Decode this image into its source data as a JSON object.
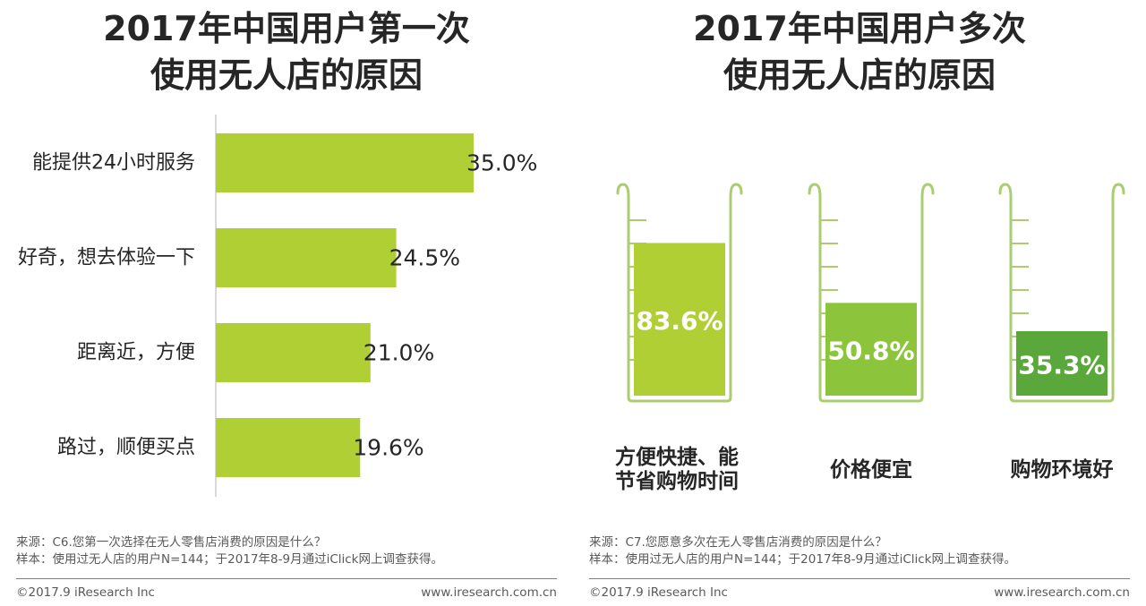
{
  "chart_data": [
    {
      "type": "bar",
      "orientation": "horizontal",
      "title": "2017年中国用户第一次使用无人店的原因",
      "title_lines": [
        "2017年中国用户第一次",
        "使用无人店的原因"
      ],
      "categories": [
        "能提供24小时服务",
        "好奇，想去体验一下",
        "距离近，方便",
        "路过，顺便买点"
      ],
      "values": [
        35.0,
        24.5,
        21.0,
        19.6
      ],
      "value_labels": [
        "35.0%",
        "24.5%",
        "21.0%",
        "19.6%"
      ],
      "unit": "%",
      "xlim": [
        0,
        35.0
      ],
      "grid": false,
      "bar_color": "#b0cf34"
    },
    {
      "type": "bar",
      "style": "beaker-fill",
      "title": "2017年中国用户多次使用无人店的原因",
      "title_lines": [
        "2017年中国用户多次",
        "使用无人店的原因"
      ],
      "categories": [
        "方便快捷、能节省购物时间",
        "价格便宜",
        "购物环境好"
      ],
      "category_lines": [
        [
          "方便快捷、能",
          "节省购物时间"
        ],
        [
          "价格便宜"
        ],
        [
          "购物环境好"
        ]
      ],
      "values": [
        83.6,
        50.8,
        35.3
      ],
      "value_labels": [
        "83.6%",
        "50.8%",
        "35.3%"
      ],
      "unit": "%",
      "ylim": [
        0,
        100
      ],
      "grid": false,
      "bar_colors": [
        "#b0cf34",
        "#8cc43c",
        "#5aa83c"
      ],
      "beaker_color": "#a9cd6f"
    }
  ],
  "left_footer": {
    "source": "来源：C6.您第一次选择在无人零售店消费的原因是什么？",
    "sample": "样本：使用过无人店的用户N=144；于2017年8-9月通过iClick网上调查获得。",
    "copyright": "©2017.9 iResearch Inc",
    "website": "www.iresearch.com.cn"
  },
  "right_footer": {
    "source": "来源：C7.您愿意多次在无人零售店消费的原因是什么？",
    "sample": "样本：使用过无人店的用户N=144；于2017年8-9月通过iClick网上调查获得。",
    "copyright": "©2017.9 iResearch Inc",
    "website": "www.iresearch.com.cn"
  },
  "colors": {
    "text_dark": "#262626",
    "text_footer": "#595959",
    "axis": "#d9d9d9",
    "value_text_on_bar": "#ffffff"
  }
}
